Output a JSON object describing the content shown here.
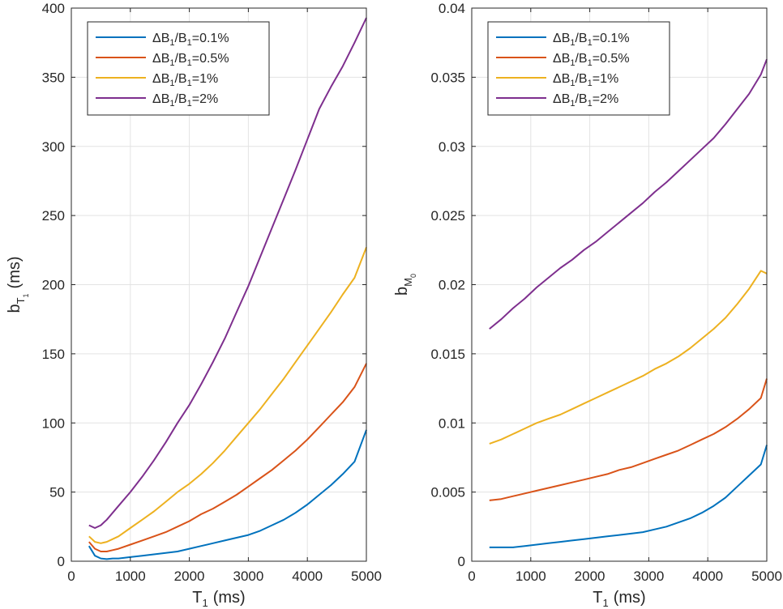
{
  "chart_data": [
    {
      "type": "line",
      "xlabel": {
        "main": "T",
        "sub": "1",
        "unit": "(ms)"
      },
      "ylabel": {
        "main": "b",
        "sub": "T",
        "subsub": "1",
        "unit": "(ms)"
      },
      "xlim": [
        0,
        5000
      ],
      "ylim": [
        0,
        400
      ],
      "xticks": [
        0,
        1000,
        2000,
        3000,
        4000,
        5000
      ],
      "yticks": [
        0,
        50,
        100,
        150,
        200,
        250,
        300,
        350,
        400
      ],
      "xtick_labels": [
        "0",
        "1000",
        "2000",
        "3000",
        "4000",
        "5000"
      ],
      "ytick_labels": [
        "0",
        "50",
        "100",
        "150",
        "200",
        "250",
        "300",
        "350",
        "400"
      ],
      "grid": true,
      "legend_location": "top-left",
      "x": [
        300,
        400,
        500,
        600,
        700,
        800,
        1000,
        1200,
        1400,
        1600,
        1800,
        2000,
        2200,
        2400,
        2600,
        2800,
        3000,
        3200,
        3400,
        3600,
        3800,
        4000,
        4200,
        4400,
        4600,
        4800,
        5000
      ],
      "series": [
        {
          "name": "ΔB1/B1=0.1%",
          "label": {
            "pre": "ΔB",
            "s1": "1",
            "mid": "/B",
            "s2": "1",
            "post": "=0.1%"
          },
          "color": "#0072BD",
          "values": [
            11,
            4,
            2,
            1.5,
            2,
            2,
            3,
            4,
            5,
            6,
            7,
            9,
            11,
            13,
            15,
            17,
            19,
            22,
            26,
            30,
            35,
            41,
            48,
            55,
            63,
            72,
            95
          ]
        },
        {
          "name": "ΔB1/B1=0.5%",
          "label": {
            "pre": "ΔB",
            "s1": "1",
            "mid": "/B",
            "s2": "1",
            "post": "=0.5%"
          },
          "color": "#D95319",
          "values": [
            14,
            9,
            7,
            7,
            8,
            9,
            12,
            15,
            18,
            21,
            25,
            29,
            34,
            38,
            43,
            48,
            54,
            60,
            66,
            73,
            80,
            88,
            97,
            106,
            115,
            126,
            143
          ]
        },
        {
          "name": "ΔB1/B1=1%",
          "label": {
            "pre": "ΔB",
            "s1": "1",
            "mid": "/B",
            "s2": "1",
            "post": "=1%"
          },
          "color": "#EDB120",
          "values": [
            18,
            14,
            13,
            14,
            16,
            18,
            24,
            30,
            36,
            43,
            50,
            56,
            63,
            71,
            80,
            90,
            100,
            110,
            121,
            132,
            144,
            156,
            168,
            180,
            193,
            205,
            227
          ]
        },
        {
          "name": "ΔB1/B1=2%",
          "label": {
            "pre": "ΔB",
            "s1": "1",
            "mid": "/B",
            "s2": "1",
            "post": "=2%"
          },
          "color": "#7E2F8E",
          "values": [
            26,
            24,
            26,
            30,
            35,
            40,
            50,
            61,
            73,
            86,
            100,
            113,
            128,
            144,
            161,
            180,
            199,
            220,
            241,
            262,
            283,
            305,
            327,
            343,
            358,
            375,
            393
          ]
        }
      ]
    },
    {
      "type": "line",
      "xlabel": {
        "main": "T",
        "sub": "1",
        "unit": "(ms)"
      },
      "ylabel": {
        "main": "b",
        "sub": "M",
        "subsub": "0",
        "unit": ""
      },
      "xlim": [
        0,
        5000
      ],
      "ylim": [
        0,
        0.04
      ],
      "xticks": [
        0,
        1000,
        2000,
        3000,
        4000,
        5000
      ],
      "yticks": [
        0,
        0.005,
        0.01,
        0.015,
        0.02,
        0.025,
        0.03,
        0.035,
        0.04
      ],
      "xtick_labels": [
        "0",
        "1000",
        "2000",
        "3000",
        "4000",
        "5000"
      ],
      "ytick_labels": [
        "0",
        "0.005",
        "0.01",
        "0.015",
        "0.02",
        "0.025",
        "0.03",
        "0.035",
        "0.04"
      ],
      "grid": true,
      "legend_location": "top-left",
      "x": [
        300,
        500,
        700,
        900,
        1100,
        1300,
        1500,
        1700,
        1900,
        2100,
        2300,
        2500,
        2700,
        2900,
        3100,
        3300,
        3500,
        3700,
        3900,
        4100,
        4300,
        4500,
        4700,
        4900,
        5000
      ],
      "series": [
        {
          "name": "ΔB1/B1=0.1%",
          "label": {
            "pre": "ΔB",
            "s1": "1",
            "mid": "/B",
            "s2": "1",
            "post": "=0.1%"
          },
          "color": "#0072BD",
          "values": [
            0.001,
            0.001,
            0.001,
            0.0011,
            0.0012,
            0.0013,
            0.0014,
            0.0015,
            0.0016,
            0.0017,
            0.0018,
            0.0019,
            0.002,
            0.0021,
            0.0023,
            0.0025,
            0.0028,
            0.0031,
            0.0035,
            0.004,
            0.0046,
            0.0054,
            0.0062,
            0.007,
            0.0084
          ]
        },
        {
          "name": "ΔB1/B1=0.5%",
          "label": {
            "pre": "ΔB",
            "s1": "1",
            "mid": "/B",
            "s2": "1",
            "post": "=0.5%"
          },
          "color": "#D95319",
          "values": [
            0.0044,
            0.0045,
            0.0047,
            0.0049,
            0.0051,
            0.0053,
            0.0055,
            0.0057,
            0.0059,
            0.0061,
            0.0063,
            0.0066,
            0.0068,
            0.0071,
            0.0074,
            0.0077,
            0.008,
            0.0084,
            0.0088,
            0.0092,
            0.0097,
            0.0103,
            0.011,
            0.0118,
            0.0132
          ]
        },
        {
          "name": "ΔB1/B1=1%",
          "label": {
            "pre": "ΔB",
            "s1": "1",
            "mid": "/B",
            "s2": "1",
            "post": "=1%"
          },
          "color": "#EDB120",
          "values": [
            0.0085,
            0.0088,
            0.0092,
            0.0096,
            0.01,
            0.0103,
            0.0106,
            0.011,
            0.0114,
            0.0118,
            0.0122,
            0.0126,
            0.013,
            0.0134,
            0.0139,
            0.0143,
            0.0148,
            0.0154,
            0.0161,
            0.0168,
            0.0176,
            0.0186,
            0.0197,
            0.021,
            0.0208
          ]
        },
        {
          "name": "ΔB1/B1=2%",
          "label": {
            "pre": "ΔB",
            "s1": "1",
            "mid": "/B",
            "s2": "1",
            "post": "=2%"
          },
          "color": "#7E2F8E",
          "values": [
            0.0168,
            0.0175,
            0.0183,
            0.019,
            0.0198,
            0.0205,
            0.0212,
            0.0218,
            0.0225,
            0.0231,
            0.0238,
            0.0245,
            0.0252,
            0.0259,
            0.0267,
            0.0274,
            0.0282,
            0.029,
            0.0298,
            0.0306,
            0.0316,
            0.0327,
            0.0338,
            0.0352,
            0.0363
          ]
        }
      ]
    }
  ]
}
